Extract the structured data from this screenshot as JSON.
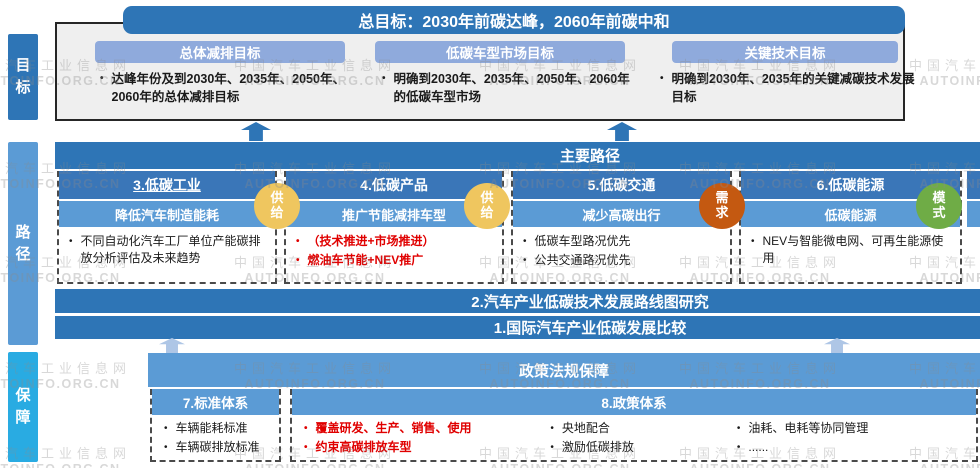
{
  "watermark": {
    "line1": "中国汽车工业信息网",
    "line2": "AUTOINFO.ORG.CN"
  },
  "colors": {
    "dark_blue": "#2E75B6",
    "mid_blue": "#5B9BD5",
    "light_blue": "#8FAADC",
    "cyan": "#29ABE2",
    "gold": "#EFC65F",
    "orange": "#C45911",
    "green": "#6FAC46",
    "red_text": "#E00000",
    "goal_box_bg": "#EFEFEF"
  },
  "rails": {
    "goal": "目标",
    "path": "路径",
    "guarantee": "保障"
  },
  "goal": {
    "main": "总目标：2030年前碳达峰，2060年前碳中和",
    "subgoals": [
      {
        "title": "总体减排目标",
        "bullet": "达峰年份及到2030年、2035年、2050年、2060年的总体减排目标"
      },
      {
        "title": "低碳车型市场目标",
        "bullet": "明确到2030年、2035年、2050年、2060年的低碳车型市场"
      },
      {
        "title": "关键技术目标",
        "bullet": "明确到2030年、2035年的关键减碳技术发展目标"
      }
    ]
  },
  "path": {
    "header": "主要路径",
    "columns": [
      {
        "title": "3.低碳工业",
        "subtitle": "降低汽车制造能耗",
        "badge": "供给",
        "badge_color": "#EFC65F",
        "bullets": [
          {
            "text": "不同自动化汽车工厂单位产能碳排放分析评估及未来趋势",
            "emphasis": false
          }
        ]
      },
      {
        "title": "4.低碳产品",
        "subtitle": "推广节能减排车型",
        "badge": "供给",
        "badge_color": "#EFC65F",
        "bullets": [
          {
            "text": "（技术推进+市场推进）",
            "emphasis": true
          },
          {
            "text": "燃油车节能+NEV推广",
            "emphasis": true
          }
        ]
      },
      {
        "title": "5.低碳交通",
        "subtitle": "减少高碳出行",
        "badge": "需求",
        "badge_color": "#C45911",
        "bullets": [
          {
            "text": "低碳车型路况优先",
            "emphasis": false
          },
          {
            "text": "公共交通路况优先",
            "emphasis": false
          }
        ]
      },
      {
        "title": "6.低碳能源",
        "subtitle": "低碳能源",
        "badge": "模式",
        "badge_color": "#6FAC46",
        "bullets": [
          {
            "text": "NEV与智能微电网、可再生能源使用",
            "emphasis": false
          }
        ]
      }
    ],
    "bar2": "2.汽车产业低碳技术发展路线图研究",
    "bar1": "1.国际汽车产业低碳发展比较"
  },
  "guarantee": {
    "header": "政策法规保障",
    "standard_box": {
      "title": "7.标准体系",
      "items": [
        "车辆能耗标准",
        "车辆碳排放标准"
      ]
    },
    "policy_box": {
      "title": "8.政策体系",
      "red_items": [
        "覆盖研发、生产、销售、使用",
        "约束高碳排放车型"
      ],
      "mid_items": [
        "央地配合",
        "激励低碳排放"
      ],
      "right_items": [
        "油耗、电耗等协同管理",
        "......"
      ]
    }
  }
}
